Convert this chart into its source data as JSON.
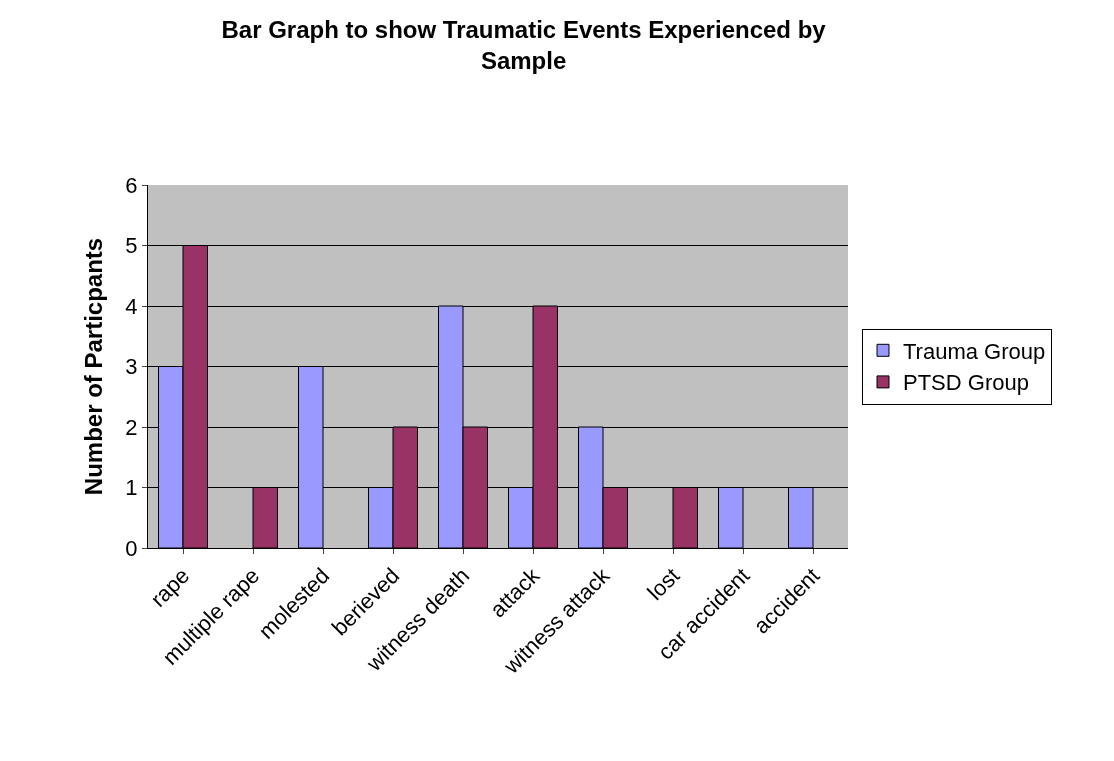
{
  "chart_data": {
    "type": "bar",
    "title": "Bar Graph to show Traumatic Events Experienced by Sample",
    "ylabel": "Number of Particpants",
    "categories": [
      "rape",
      "multiple rape",
      "molested",
      "berieved",
      "witness death",
      "attack",
      "witness attack",
      "lost",
      "car accident",
      "accident"
    ],
    "series": [
      {
        "name": "Trauma Group",
        "color": "#9999ff",
        "values": [
          3,
          0,
          3,
          1,
          4,
          1,
          2,
          0,
          1,
          1
        ]
      },
      {
        "name": "PTSD Group",
        "color": "#993366",
        "values": [
          5,
          1,
          0,
          2,
          2,
          4,
          1,
          1,
          0,
          0
        ]
      }
    ],
    "ylim": [
      0,
      6
    ],
    "yticks": [
      0,
      1,
      2,
      3,
      4,
      5,
      6
    ],
    "grid": "y",
    "legend": "right"
  }
}
